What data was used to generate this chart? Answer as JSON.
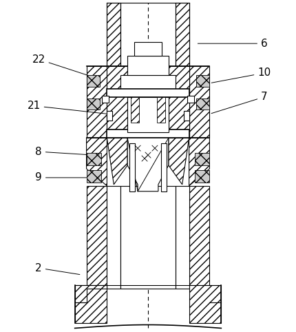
{
  "bg_color": "#ffffff",
  "line_color": "#000000",
  "fig_width": 4.3,
  "fig_height": 4.82,
  "dpi": 100,
  "label_fontsize": 11
}
